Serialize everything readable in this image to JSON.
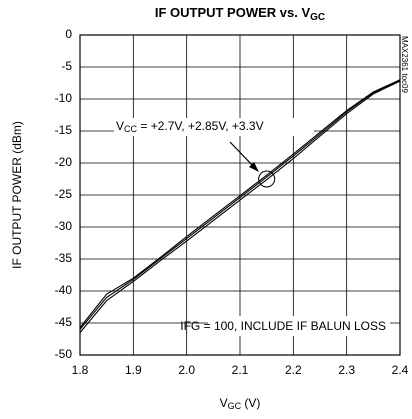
{
  "chart_data": {
    "type": "line",
    "title": {
      "text": "IF OUTPUT POWER vs. V",
      "sub": "GC"
    },
    "x_label": {
      "text": "V",
      "sub": "GC",
      "after": " (V)"
    },
    "y_label": "IF OUTPUT POWER (dBm)",
    "annotations": {
      "vcc": {
        "text": "V",
        "sub": "CC",
        "after": " = +2.7V, +2.85V, +3.3V"
      },
      "ifg": "IFG = 100, INCLUDE IF BALUN LOSS",
      "toc": "MAX2361 toc09"
    },
    "x": [
      1.8,
      1.85,
      1.9,
      1.95,
      2.0,
      2.05,
      2.1,
      2.15,
      2.2,
      2.25,
      2.3,
      2.35,
      2.4
    ],
    "series": [
      {
        "color": "#000000",
        "values": [
          -46.5,
          -41.5,
          -38.5,
          -35.3,
          -32.2,
          -29,
          -25.8,
          -22.6,
          -19.3,
          -15.8,
          -12.3,
          -9.2,
          -7.2
        ]
      },
      {
        "color": "#000000",
        "values": [
          -46,
          -41,
          -38.2,
          -35,
          -31.8,
          -28.6,
          -25.4,
          -22.2,
          -18.9,
          -15.5,
          -12,
          -9,
          -7.1
        ]
      },
      {
        "color": "#000000",
        "values": [
          -45.7,
          -40.5,
          -38,
          -34.8,
          -31.5,
          -28.3,
          -25.1,
          -21.9,
          -18.6,
          -15.2,
          -11.8,
          -8.9,
          -7
        ]
      }
    ],
    "xlim": [
      1.8,
      2.4
    ],
    "xticks": [
      {
        "value": 1.8,
        "label": "1.8"
      },
      {
        "value": 1.9,
        "label": "1.9"
      },
      {
        "value": 2.0,
        "label": "2.0"
      },
      {
        "value": 2.1,
        "label": "2.1"
      },
      {
        "value": 2.2,
        "label": "2.2"
      },
      {
        "value": 2.3,
        "label": "2.3"
      },
      {
        "value": 2.4,
        "label": "2.4"
      }
    ],
    "ylim": [
      -50,
      0
    ],
    "yticks": [
      -50,
      -45,
      -40,
      -35,
      -30,
      -25,
      -20,
      -15,
      -10,
      -5,
      0
    ],
    "grid": true
  }
}
